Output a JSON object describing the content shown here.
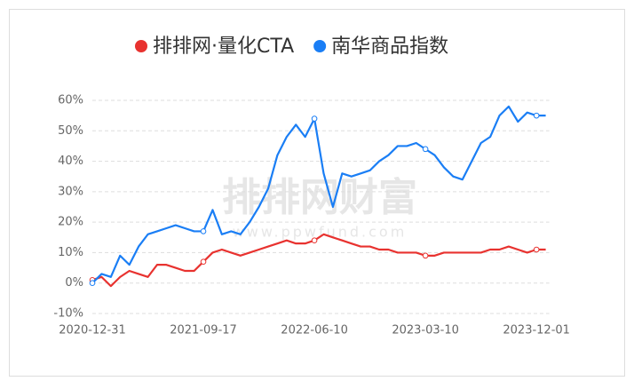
{
  "chart_data": {
    "type": "line",
    "watermark": [
      "排排网财富",
      "www.ppwfund.com"
    ],
    "categories": [
      "2020-12-31",
      null,
      null,
      null,
      null,
      null,
      null,
      null,
      null,
      null,
      null,
      null,
      "2021-09-17",
      null,
      null,
      null,
      null,
      null,
      null,
      null,
      null,
      null,
      null,
      null,
      "2022-06-10",
      null,
      null,
      null,
      null,
      null,
      null,
      null,
      null,
      null,
      null,
      null,
      "2023-03-10",
      null,
      null,
      null,
      null,
      null,
      null,
      null,
      null,
      null,
      null,
      null,
      "2023-12-01",
      null
    ],
    "series": [
      {
        "name": "排排网·量化CTA",
        "color": "#e8322f",
        "values": [
          1,
          2,
          -1,
          2,
          4,
          3,
          2,
          6,
          6,
          5,
          4,
          4,
          7,
          10,
          11,
          10,
          9,
          10,
          11,
          12,
          13,
          14,
          13,
          13,
          14,
          16,
          15,
          14,
          13,
          12,
          12,
          11,
          11,
          10,
          10,
          10,
          9,
          9,
          10,
          10,
          10,
          10,
          10,
          11,
          11,
          12,
          11,
          10,
          11,
          11
        ]
      },
      {
        "name": "南华商品指数",
        "color": "#1a7ef5",
        "values": [
          0,
          3,
          2,
          9,
          6,
          12,
          16,
          17,
          18,
          19,
          18,
          17,
          17,
          24,
          16,
          17,
          16,
          20,
          25,
          31,
          42,
          48,
          52,
          48,
          54,
          36,
          25,
          36,
          35,
          36,
          37,
          40,
          42,
          45,
          45,
          46,
          44,
          42,
          38,
          35,
          34,
          40,
          46,
          48,
          55,
          58,
          53,
          56,
          55,
          55
        ]
      }
    ],
    "ylim": [
      -10,
      60
    ],
    "yticks": [
      {
        "value": -10,
        "label": "-10%"
      },
      {
        "value": 0,
        "label": "0%"
      },
      {
        "value": 10,
        "label": "10%"
      },
      {
        "value": 20,
        "label": "20%"
      },
      {
        "value": 30,
        "label": "30%"
      },
      {
        "value": 40,
        "label": "40%"
      },
      {
        "value": 50,
        "label": "50%"
      },
      {
        "value": 60,
        "label": "60%"
      }
    ],
    "grid": true
  }
}
